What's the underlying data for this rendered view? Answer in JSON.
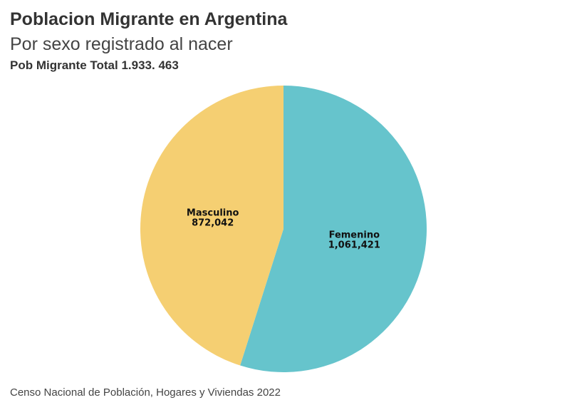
{
  "header": {
    "title": "Poblacion Migrante en Argentina",
    "subtitle": "Por sexo registrado al nacer",
    "total_label": "Pob Migrante Total 1.933. 463"
  },
  "footer": {
    "source": "Censo Nacional de Población, Hogares y Viviendas 2022"
  },
  "chart_data": {
    "type": "pie",
    "title": "Poblacion Migrante en Argentina",
    "subtitle": "Por sexo registrado al nacer",
    "slices": [
      {
        "label": "Femenino",
        "value": 1061421,
        "value_label": "1,061,421",
        "color": "#66c4cc"
      },
      {
        "label": "Masculino",
        "value": 872042,
        "value_label": "872,042",
        "color": "#f5cf72"
      }
    ],
    "start": "12 o'clock",
    "direction": "clockwise"
  }
}
